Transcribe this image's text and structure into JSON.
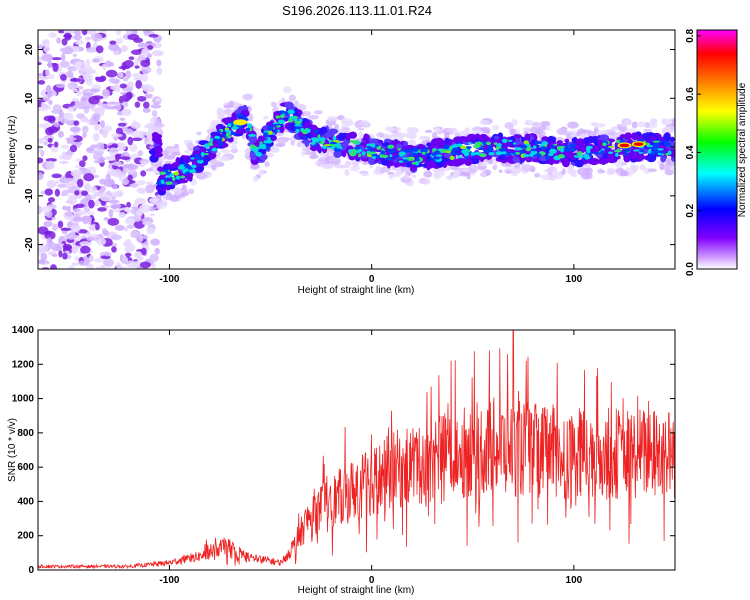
{
  "chart_data": [
    {
      "type": "heatmap",
      "title": "S196.2026.113.11.01.R24",
      "xlabel": "Height of straight line (km)",
      "ylabel": "Frequency (Hz)",
      "xlim": [
        -165,
        150
      ],
      "ylim": [
        -25,
        24
      ],
      "xticks": [
        -100,
        0,
        100
      ],
      "yticks": [
        -20,
        -10,
        0,
        10,
        20
      ],
      "colorbar": {
        "label": "Normalized spectral amplitude",
        "range": [
          0,
          0.82
        ],
        "ticks": [
          "0.0",
          "0.2",
          "0.4",
          "0.6",
          "0.8"
        ],
        "tick_values": [
          0,
          0.2,
          0.4,
          0.6,
          0.8
        ],
        "colors": [
          "#ffffff",
          "#8000ff",
          "#0000ff",
          "#00ffff",
          "#00ff00",
          "#ffff00",
          "#ff8000",
          "#ff0000",
          "#ff00ff"
        ]
      },
      "ridge": [
        {
          "x": -105,
          "y": -7
        },
        {
          "x": -90,
          "y": -4
        },
        {
          "x": -75,
          "y": 2
        },
        {
          "x": -62,
          "y": 6
        },
        {
          "x": -57,
          "y": -2
        },
        {
          "x": -48,
          "y": 4
        },
        {
          "x": -42,
          "y": 7
        },
        {
          "x": -30,
          "y": 2
        },
        {
          "x": -10,
          "y": 0
        },
        {
          "x": 20,
          "y": -2
        },
        {
          "x": 60,
          "y": 0
        },
        {
          "x": 100,
          "y": -1
        },
        {
          "x": 130,
          "y": 0
        },
        {
          "x": 150,
          "y": 0
        }
      ]
    },
    {
      "type": "line",
      "xlabel": "Height of straight line (km)",
      "ylabel": "SNR (10 * v/v)",
      "xlim": [
        -165,
        150
      ],
      "ylim": [
        0,
        1400
      ],
      "xticks": [
        -100,
        0,
        100
      ],
      "yticks": [
        0,
        200,
        400,
        600,
        800,
        1000,
        1200,
        1400
      ],
      "color": "#ee2222",
      "trend": [
        {
          "x": -165,
          "y": 20
        },
        {
          "x": -120,
          "y": 20
        },
        {
          "x": -100,
          "y": 40
        },
        {
          "x": -85,
          "y": 80
        },
        {
          "x": -72,
          "y": 140
        },
        {
          "x": -60,
          "y": 70
        },
        {
          "x": -45,
          "y": 40
        },
        {
          "x": -38,
          "y": 150
        },
        {
          "x": -30,
          "y": 330
        },
        {
          "x": -15,
          "y": 430
        },
        {
          "x": 0,
          "y": 520
        },
        {
          "x": 15,
          "y": 600
        },
        {
          "x": 30,
          "y": 650
        },
        {
          "x": 60,
          "y": 720
        },
        {
          "x": 100,
          "y": 680
        },
        {
          "x": 150,
          "y": 680
        }
      ]
    }
  ]
}
